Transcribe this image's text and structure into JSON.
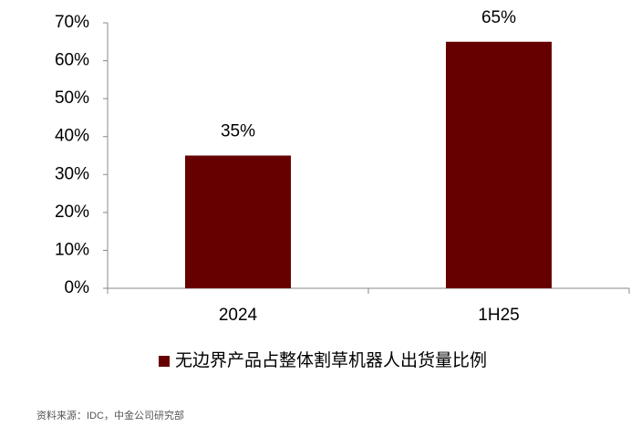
{
  "chart_data": {
    "type": "bar",
    "categories": [
      "2024",
      "1H25"
    ],
    "series": [
      {
        "name": "无边界产品占整体割草机器人出货量比例",
        "color": "#660000",
        "values": [
          35,
          65
        ],
        "value_labels": [
          "35%",
          "65%"
        ]
      }
    ],
    "ylim": [
      0,
      70
    ],
    "yticks": [
      {
        "value": 0,
        "label": "0%"
      },
      {
        "value": 10,
        "label": "10%"
      },
      {
        "value": 20,
        "label": "20%"
      },
      {
        "value": 30,
        "label": "30%"
      },
      {
        "value": 40,
        "label": "40%"
      },
      {
        "value": 50,
        "label": "50%"
      },
      {
        "value": 60,
        "label": "60%"
      },
      {
        "value": 70,
        "label": "70%"
      }
    ],
    "grid": false,
    "legend": "bottom",
    "source": "资料来源：IDC，中金公司研究部"
  }
}
